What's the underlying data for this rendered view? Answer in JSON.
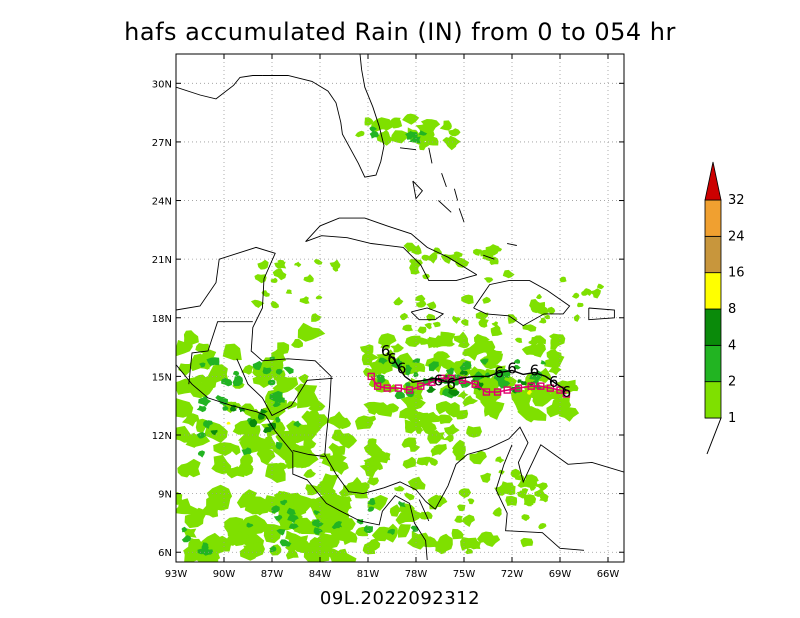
{
  "title": "hafs accumulated Rain (IN) from 0 to 054 hr",
  "footer": "09L.2022092312",
  "map": {
    "lon_range": [
      -93,
      -65
    ],
    "lat_range": [
      5.5,
      31.5
    ],
    "lon_ticks": [
      {
        "v": -93,
        "label": "93W"
      },
      {
        "v": -90,
        "label": "90W"
      },
      {
        "v": -87,
        "label": "87W"
      },
      {
        "v": -84,
        "label": "84W"
      },
      {
        "v": -81,
        "label": "81W"
      },
      {
        "v": -78,
        "label": "78W"
      },
      {
        "v": -75,
        "label": "75W"
      },
      {
        "v": -72,
        "label": "72W"
      },
      {
        "v": -69,
        "label": "69W"
      },
      {
        "v": -66,
        "label": "66W"
      }
    ],
    "lat_ticks": [
      {
        "v": 6,
        "label": "6N"
      },
      {
        "v": 9,
        "label": "9N"
      },
      {
        "v": 12,
        "label": "12N"
      },
      {
        "v": 15,
        "label": "15N"
      },
      {
        "v": 18,
        "label": "18N"
      },
      {
        "v": 21,
        "label": "21N"
      },
      {
        "v": 24,
        "label": "24N"
      },
      {
        "v": 27,
        "label": "27N"
      },
      {
        "v": 30,
        "label": "30N"
      }
    ],
    "gridlines": true
  },
  "colorbar": {
    "levels": [
      "1",
      "2",
      "4",
      "8",
      "16",
      "24",
      "32"
    ],
    "colors": [
      "#7fe000",
      "#22b422",
      "#0a8a0a",
      "#ffff00",
      "#c8963c",
      "#f0a030",
      "#cc0000"
    ]
  },
  "rain_colors": {
    "light": "#7fe000",
    "medium": "#22b422",
    "heavy": "#0a8a0a",
    "peak": "#ffff00"
  },
  "track": {
    "marker_label": "6",
    "model_color": "#000000",
    "obs_color": "#e0006e",
    "model_points": [
      [
        -79.8,
        16.2
      ],
      [
        -79.4,
        15.9
      ],
      [
        -79.1,
        15.5
      ],
      [
        -78.7,
        15.0
      ],
      [
        -78.2,
        14.7
      ],
      [
        -77.5,
        14.8
      ],
      [
        -76.8,
        14.9
      ],
      [
        -76.0,
        14.7
      ],
      [
        -75.2,
        14.9
      ],
      [
        -74.4,
        15.0
      ],
      [
        -73.5,
        15.0
      ],
      [
        -72.8,
        15.2
      ],
      [
        -72.0,
        15.3
      ],
      [
        -71.3,
        15.1
      ],
      [
        -70.6,
        15.2
      ],
      [
        -69.9,
        15.0
      ],
      [
        -69.2,
        14.6
      ],
      [
        -68.6,
        14.3
      ]
    ],
    "model_label_points": [
      [
        -79.9,
        16.3
      ],
      [
        -79.5,
        15.9
      ],
      [
        -78.9,
        15.4
      ],
      [
        -76.6,
        14.8
      ],
      [
        -75.8,
        14.6
      ],
      [
        -72.8,
        15.2
      ],
      [
        -72.0,
        15.4
      ],
      [
        -70.6,
        15.3
      ],
      [
        -69.4,
        14.7
      ],
      [
        -68.6,
        14.2
      ]
    ],
    "obs_points": [
      [
        -80.8,
        15.0
      ],
      [
        -80.4,
        14.5
      ],
      [
        -79.8,
        14.4
      ],
      [
        -79.1,
        14.4
      ],
      [
        -78.4,
        14.3
      ],
      [
        -77.7,
        14.5
      ],
      [
        -77.0,
        14.7
      ],
      [
        -76.4,
        14.9
      ],
      [
        -75.8,
        14.9
      ],
      [
        -75.1,
        14.8
      ],
      [
        -74.3,
        14.6
      ],
      [
        -73.6,
        14.2
      ],
      [
        -72.9,
        14.2
      ],
      [
        -72.3,
        14.3
      ],
      [
        -71.6,
        14.4
      ],
      [
        -70.8,
        14.5
      ],
      [
        -70.2,
        14.5
      ],
      [
        -69.6,
        14.4
      ],
      [
        -69.0,
        14.3
      ],
      [
        -68.6,
        14.1
      ]
    ]
  }
}
